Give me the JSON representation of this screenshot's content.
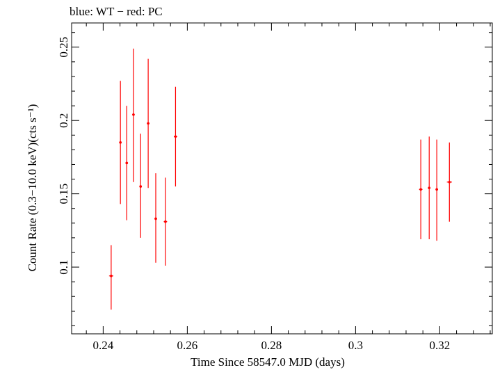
{
  "chart_data": {
    "type": "scatter",
    "title": "blue: WT − red: PC",
    "xlabel": "Time Since 58547.0 MJD (days)",
    "ylabel": "Count Rate (0.3−10.0 keV)(cts s⁻¹)",
    "xlim": [
      0.2325,
      0.3325
    ],
    "ylim": [
      0.0545,
      0.2665
    ],
    "x_ticks": [
      0.24,
      0.26,
      0.28,
      0.3,
      0.32
    ],
    "x_tick_labels": [
      "0.24",
      "0.26",
      "0.28",
      "0.3",
      "0.32"
    ],
    "y_ticks": [
      0.1,
      0.15,
      0.2,
      0.25
    ],
    "y_tick_labels": [
      "0.1",
      "0.15",
      "0.2",
      "0.25"
    ],
    "grid": false,
    "series": [
      {
        "color": "#ff0000",
        "points": [
          {
            "x": 0.2419,
            "y": 0.094,
            "xerr": 0.0005,
            "ylo": 0.071,
            "yhi": 0.115
          },
          {
            "x": 0.2441,
            "y": 0.185,
            "xerr": 0.0003,
            "ylo": 0.143,
            "yhi": 0.227
          },
          {
            "x": 0.2456,
            "y": 0.171,
            "xerr": 0.0003,
            "ylo": 0.132,
            "yhi": 0.21
          },
          {
            "x": 0.2472,
            "y": 0.204,
            "xerr": 0.0003,
            "ylo": 0.158,
            "yhi": 0.249
          },
          {
            "x": 0.2489,
            "y": 0.155,
            "xerr": 0.0003,
            "ylo": 0.12,
            "yhi": 0.191
          },
          {
            "x": 0.2507,
            "y": 0.198,
            "xerr": 0.0003,
            "ylo": 0.154,
            "yhi": 0.242
          },
          {
            "x": 0.2525,
            "y": 0.133,
            "xerr": 0.0003,
            "ylo": 0.103,
            "yhi": 0.164
          },
          {
            "x": 0.2548,
            "y": 0.131,
            "xerr": 0.0004,
            "ylo": 0.101,
            "yhi": 0.161
          },
          {
            "x": 0.2572,
            "y": 0.189,
            "xerr": 0.0004,
            "ylo": 0.155,
            "yhi": 0.223
          },
          {
            "x": 0.3155,
            "y": 0.153,
            "xerr": 0.0004,
            "ylo": 0.119,
            "yhi": 0.187
          },
          {
            "x": 0.3175,
            "y": 0.154,
            "xerr": 0.0003,
            "ylo": 0.119,
            "yhi": 0.189
          },
          {
            "x": 0.3193,
            "y": 0.153,
            "xerr": 0.0003,
            "ylo": 0.118,
            "yhi": 0.187
          },
          {
            "x": 0.3223,
            "y": 0.158,
            "xerr": 0.0006,
            "ylo": 0.131,
            "yhi": 0.185
          }
        ]
      }
    ]
  }
}
